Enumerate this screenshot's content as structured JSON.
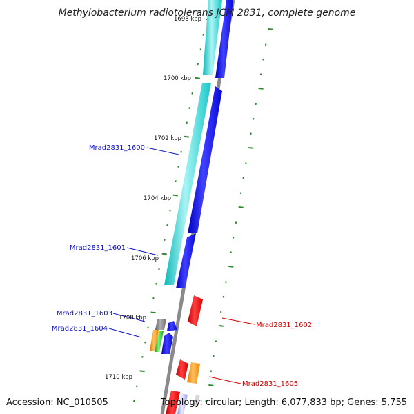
{
  "title": "Methylobacterium radiotolerans JCM 2831, complete genome",
  "accession": "Accession: NC_010505",
  "topology": "Topology: circular; Length: 6,077,833 bp; Genes: 5,755",
  "scale": {
    "labels": [
      "1698 kbp",
      "1700 kbp",
      "1702 kbp",
      "1704 kbp",
      "1706 kbp",
      "1708 kbp",
      "1710 kbp"
    ]
  },
  "genes": {
    "mrad1600": "Mrad2831_1600",
    "mrad1601": "Mrad2831_1601",
    "mrad1602": "Mrad2831_1602",
    "mrad1603": "Mrad2831_1603",
    "mrad1604": "Mrad2831_1604",
    "mrad1605": "Mrad2831_1605"
  },
  "colors": {
    "backbone": "#8a8a8a",
    "cyan": "#19d0d0",
    "blue": "#0a10e8",
    "red": "#e80e0e",
    "orange": "#ff9a10",
    "green": "#2cc02c",
    "gray": "#7a7a7a",
    "tick_green": "#2a8a2a",
    "label_blue": "#0a10c0",
    "label_red": "#d00000"
  }
}
